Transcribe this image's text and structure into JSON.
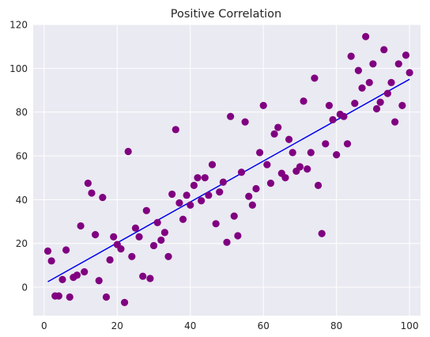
{
  "chart_data": {
    "type": "scatter",
    "title": "Positive Correlation",
    "xlabel": "",
    "ylabel": "",
    "xlim": [
      -3,
      103
    ],
    "ylim": [
      -13,
      120
    ],
    "xticks": [
      0,
      20,
      40,
      60,
      80,
      100
    ],
    "yticks": [
      0,
      20,
      40,
      60,
      80,
      100,
      120
    ],
    "grid": true,
    "colors": {
      "points": "#800080",
      "fit_line": "#0000ee",
      "background": "#eaeaf2",
      "grid": "#ffffff"
    },
    "series": [
      {
        "type": "scatter",
        "points": [
          [
            1,
            16.5
          ],
          [
            2,
            12
          ],
          [
            3,
            -4
          ],
          [
            4,
            -4
          ],
          [
            5,
            3.5
          ],
          [
            6,
            17
          ],
          [
            7,
            -4.5
          ],
          [
            8,
            4.5
          ],
          [
            9,
            5.5
          ],
          [
            10,
            28
          ],
          [
            11,
            7
          ],
          [
            12,
            47.5
          ],
          [
            13,
            43
          ],
          [
            14,
            24
          ],
          [
            15,
            3
          ],
          [
            16,
            41
          ],
          [
            17,
            -4.5
          ],
          [
            18,
            12.5
          ],
          [
            19,
            23
          ],
          [
            20,
            19.5
          ],
          [
            21,
            17.5
          ],
          [
            22,
            -7
          ],
          [
            23,
            62
          ],
          [
            24,
            14
          ],
          [
            25,
            27
          ],
          [
            26,
            23
          ],
          [
            27,
            5
          ],
          [
            28,
            35
          ],
          [
            29,
            4
          ],
          [
            30,
            19
          ],
          [
            31,
            29.5
          ],
          [
            32,
            21.5
          ],
          [
            33,
            25
          ],
          [
            34,
            14
          ],
          [
            35,
            42.5
          ],
          [
            36,
            72
          ],
          [
            37,
            38.5
          ],
          [
            38,
            31
          ],
          [
            39,
            42
          ],
          [
            40,
            37.5
          ],
          [
            41,
            46.5
          ],
          [
            42,
            50
          ],
          [
            43,
            39.5
          ],
          [
            44,
            50
          ],
          [
            45,
            42
          ],
          [
            46,
            56
          ],
          [
            47,
            29
          ],
          [
            48,
            43.5
          ],
          [
            49,
            48
          ],
          [
            50,
            20.5
          ],
          [
            51,
            78
          ],
          [
            52,
            32.5
          ],
          [
            53,
            23.5
          ],
          [
            54,
            52.5
          ],
          [
            55,
            75.5
          ],
          [
            56,
            41.5
          ],
          [
            57,
            37.5
          ],
          [
            58,
            45
          ],
          [
            59,
            61.5
          ],
          [
            60,
            83
          ],
          [
            61,
            56
          ],
          [
            62,
            47.5
          ],
          [
            63,
            70
          ],
          [
            64,
            73
          ],
          [
            65,
            52
          ],
          [
            66,
            50
          ],
          [
            67,
            67.5
          ],
          [
            68,
            61.5
          ],
          [
            69,
            53
          ],
          [
            70,
            55
          ],
          [
            71,
            85
          ],
          [
            72,
            54
          ],
          [
            73,
            61.5
          ],
          [
            74,
            95.5
          ],
          [
            75,
            46.5
          ],
          [
            76,
            24.5
          ],
          [
            77,
            65.5
          ],
          [
            78,
            83
          ],
          [
            79,
            76.5
          ],
          [
            80,
            60.5
          ],
          [
            81,
            79
          ],
          [
            82,
            78
          ],
          [
            83,
            65.5
          ],
          [
            84,
            105.5
          ],
          [
            85,
            84
          ],
          [
            86,
            99
          ],
          [
            87,
            91
          ],
          [
            88,
            114.5
          ],
          [
            89,
            93.5
          ],
          [
            90,
            102
          ],
          [
            91,
            81.5
          ],
          [
            92,
            84.5
          ],
          [
            93,
            108.5
          ],
          [
            94,
            88.5
          ],
          [
            95,
            93.5
          ],
          [
            96,
            75.5
          ],
          [
            97,
            102
          ],
          [
            98,
            83
          ],
          [
            99,
            106
          ],
          [
            100,
            98
          ]
        ]
      },
      {
        "type": "line",
        "points": [
          [
            1,
            2.5
          ],
          [
            100,
            95
          ]
        ]
      }
    ]
  }
}
